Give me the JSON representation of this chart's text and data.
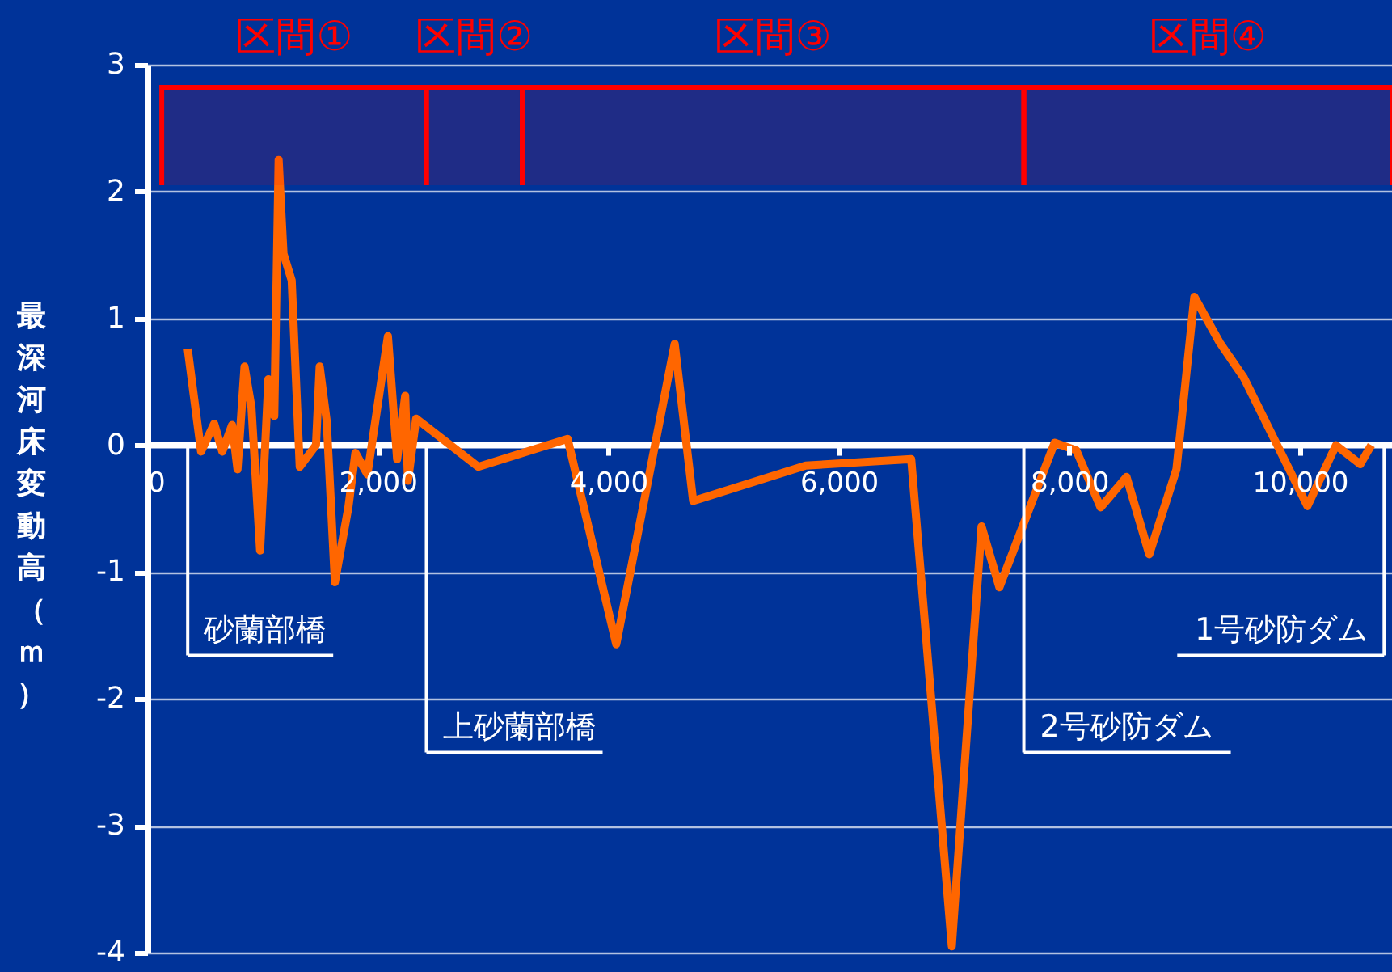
{
  "chart_data": {
    "type": "line",
    "ylabel": "最深河床変動高（ｍ）",
    "x": [
      352,
      468,
      582,
      652,
      737,
      784,
      845,
      905,
      980,
      1052,
      1103,
      1141,
      1183,
      1254,
      1324,
      1465,
      1497,
      1558,
      1629,
      1746,
      1807,
      1911,
      2089,
      2169,
      2239,
      2263,
      2334,
      2873,
      3648,
      4070,
      4577,
      4737,
      5713,
      6629,
      6981,
      7239,
      7394,
      7873,
      8061,
      8272,
      8497,
      8694,
      8930,
      9085,
      9305,
      9516,
      10066,
      10314,
      10525,
      10620
    ],
    "series": [
      {
        "color": "#ff6600",
        "values": [
          0.76,
          -0.05,
          0.17,
          -0.05,
          0.16,
          -0.19,
          0.62,
          0.3,
          -0.83,
          0.52,
          0.23,
          2.25,
          1.51,
          1.3,
          -0.17,
          0.0,
          0.62,
          0.19,
          -1.08,
          -0.49,
          -0.06,
          -0.23,
          0.86,
          -0.11,
          0.39,
          -0.28,
          0.21,
          -0.17,
          0.05,
          -1.57,
          0.8,
          -0.44,
          -0.16,
          -0.11,
          -3.95,
          -0.64,
          -1.12,
          0.02,
          -0.04,
          -0.49,
          -0.25,
          -0.86,
          -0.19,
          1.17,
          0.81,
          0.53,
          -0.48,
          0.0,
          -0.15,
          0.0
        ]
      }
    ],
    "xlim": [
      0,
      10800
    ],
    "xticks": [
      0,
      {
        "value": 2000,
        "label": "2,000"
      },
      {
        "value": 4000,
        "label": "4,000"
      },
      {
        "value": 6000,
        "label": "6,000"
      },
      {
        "value": 8000,
        "label": "8,000"
      },
      {
        "value": 10000,
        "label": "10,000"
      }
    ],
    "ylim": [
      -4,
      3
    ],
    "yticks": [
      {
        "value": -4,
        "label": "-4"
      },
      {
        "value": -3,
        "label": "-3"
      },
      {
        "value": -2,
        "label": "-2"
      },
      {
        "value": -1,
        "label": "-1"
      },
      0,
      1,
      2,
      3
    ],
    "grid": "y",
    "line_style": "solid",
    "marker": "none",
    "ref_lines": [
      {
        "axis": "x",
        "value": 352,
        "label": "砂蘭部橋",
        "color": "#ffffff"
      },
      {
        "axis": "x",
        "value": 2423,
        "label": "上砂蘭部橋",
        "color": "#ffffff"
      },
      {
        "axis": "x",
        "value": 7606,
        "label": "2号砂防ダム",
        "color": "#ffffff"
      },
      {
        "axis": "x",
        "value": 10732,
        "label": "1号砂防ダム",
        "color": "#ffffff"
      }
    ],
    "bands": [
      {
        "axis": "x",
        "from": 127,
        "to": 2423,
        "label": "区間①",
        "color": "#ff0000"
      },
      {
        "axis": "x",
        "from": 2423,
        "to": 3254,
        "label": "区間②",
        "color": "#ff0000"
      },
      {
        "axis": "x",
        "from": 3254,
        "to": 7606,
        "label": "区間③",
        "color": "#ff0000"
      },
      {
        "axis": "x",
        "from": 7606,
        "to": 10800,
        "label": "区間④",
        "color": "#ff0000"
      }
    ]
  }
}
